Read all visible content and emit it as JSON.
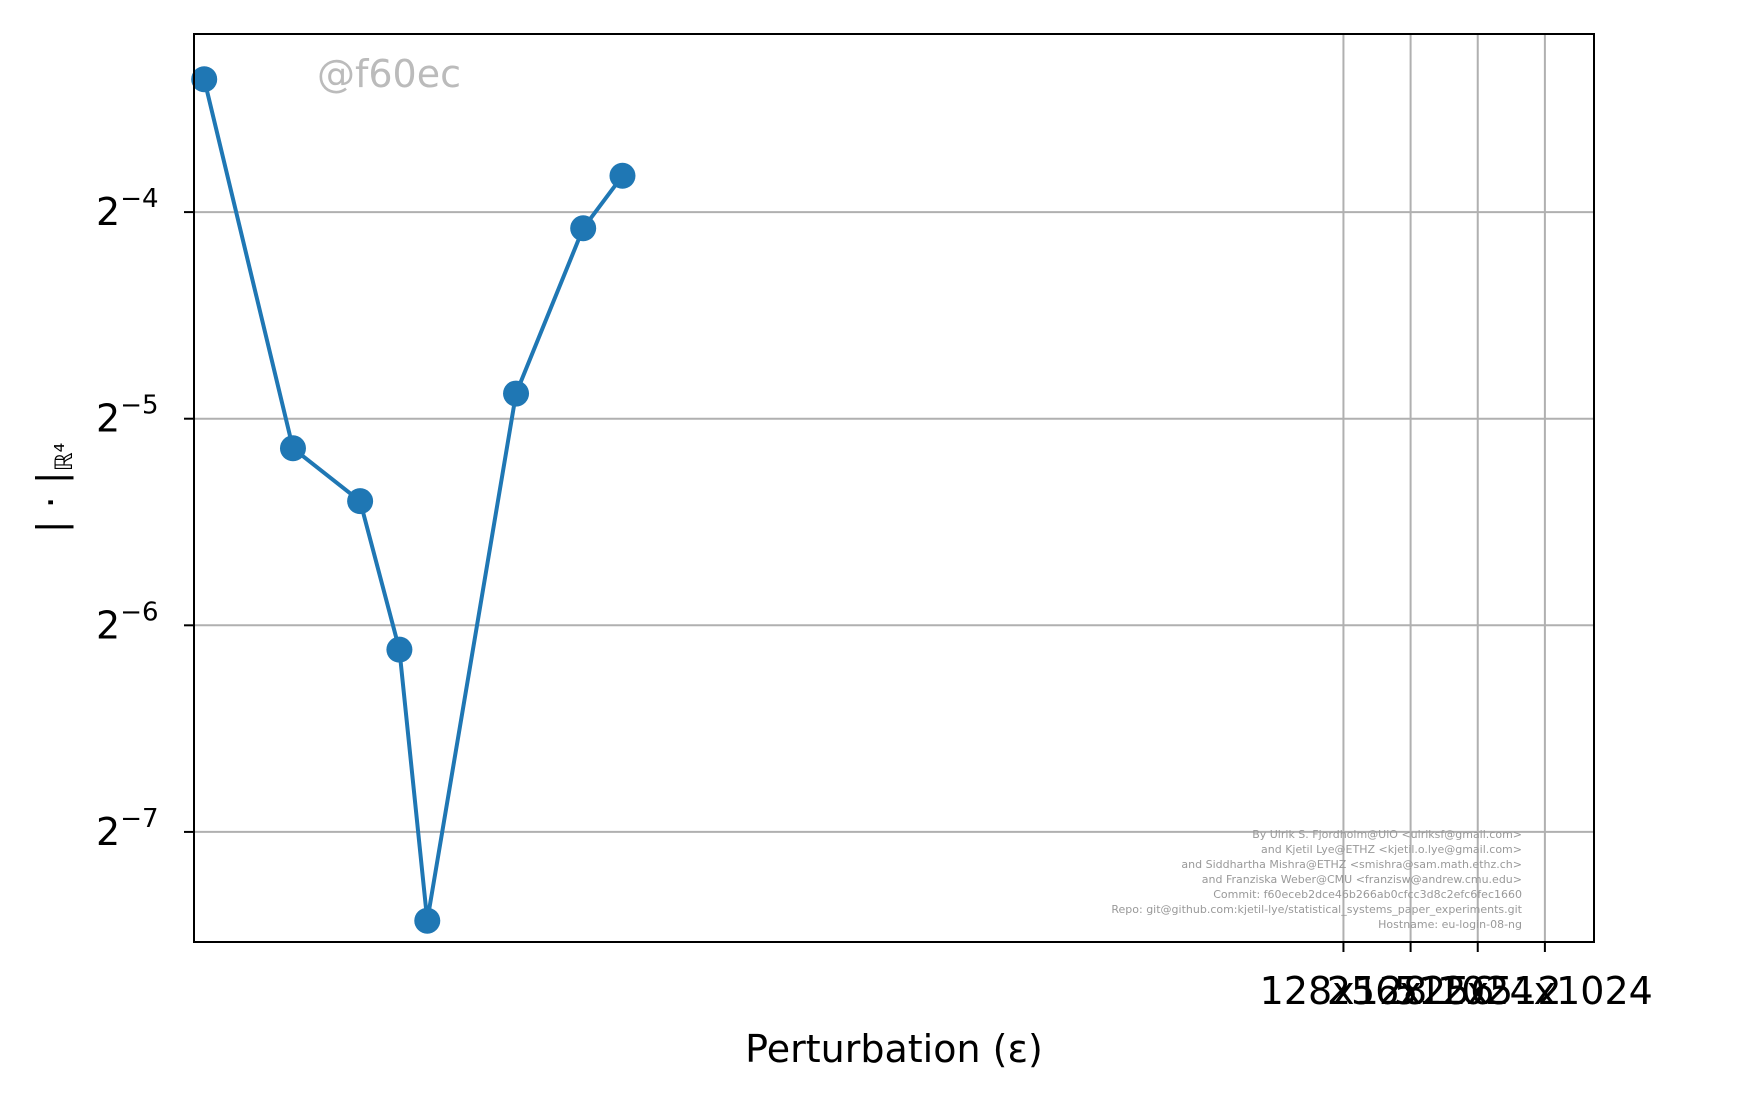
{
  "chart_data": {
    "type": "line",
    "title": "",
    "xlabel": "Perturbation (ε)",
    "ylabel": "|·|ℝ⁴",
    "ylabel_parts": {
      "main": "| · |",
      "sub": "ℝ⁴"
    },
    "x_scale": "log2",
    "y_scale": "log2",
    "xlim": [
      0.0009,
      1700
    ],
    "ylim": [
      0.0054,
      0.1136
    ],
    "x_ticks": [
      {
        "value": 128,
        "label": "128x128"
      },
      {
        "value": 256,
        "label": "256x256"
      },
      {
        "value": 512,
        "label": "512x512"
      },
      {
        "value": 1024,
        "label": "1024x1024"
      }
    ],
    "y_ticks": [
      {
        "value": 0.0625,
        "base": "2",
        "exp": "−4"
      },
      {
        "value": 0.03125,
        "base": "2",
        "exp": "−5"
      },
      {
        "value": 0.015625,
        "base": "2",
        "exp": "−6"
      },
      {
        "value": 0.0078125,
        "base": "2",
        "exp": "−7"
      }
    ],
    "grid": true,
    "series": [
      {
        "color": "#1f77b4",
        "x": [
          0.001,
          0.0025,
          0.005,
          0.0075,
          0.01,
          0.025,
          0.05,
          0.075
        ],
        "y": [
          0.0976,
          0.0283,
          0.0237,
          0.0144,
          0.0058,
          0.034,
          0.0592,
          0.0706
        ]
      }
    ],
    "watermark": "@f60ec",
    "credits": [
      "By Ulrik S. Fjordholm@UiO <ulriksf@gmail.com>",
      "and Kjetil Lye@ETHZ <kjetil.o.lye@gmail.com>",
      "and Siddhartha Mishra@ETHZ <smishra@sam.math.ethz.ch>",
      "and Franziska Weber@CMU <franzisw@andrew.cmu.edu>",
      "Commit: f60eceb2dce46b266ab0cfcc3d8c2efc6fec1660",
      "Repo: git@github.com:kjetil-lye/statistical_systems_paper_experiments.git",
      "Hostname: eu-login-08-ng"
    ]
  }
}
